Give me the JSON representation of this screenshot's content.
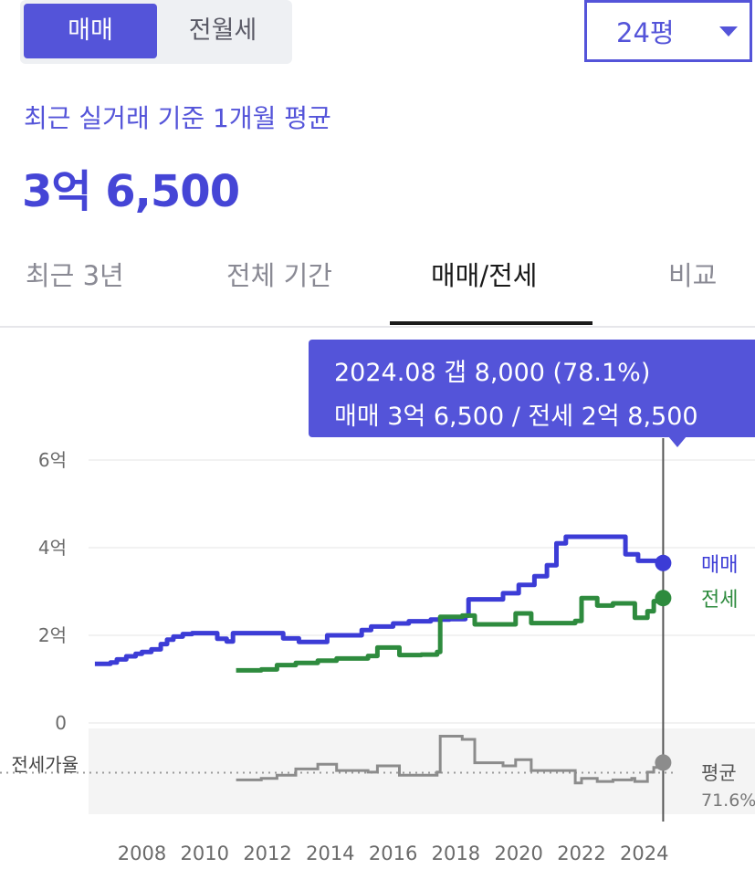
{
  "deal_type": {
    "options": [
      "매매",
      "전월세"
    ],
    "selected": "매매"
  },
  "area": {
    "selected": "24평"
  },
  "summary": {
    "basis": "최근 실거래 기준 1개월 평균",
    "price": "3억 6,500"
  },
  "tabs": [
    {
      "label": "최근 3년",
      "active": false
    },
    {
      "label": "전체 기간",
      "active": false
    },
    {
      "label": "매매/전세",
      "active": true
    },
    {
      "label": "비교",
      "active": false
    }
  ],
  "tooltip": {
    "line1": "2024.08  갭 8,000 (78.1%)",
    "line2": "매매 3억 6,500 / 전세 2억 8,500"
  },
  "colors": {
    "accent": "#5454d9",
    "sale": "#3c3cd6",
    "jeonse": "#2e8b3e",
    "ratio": "#8c8c8c"
  },
  "chart_data": {
    "type": "line",
    "x_unit": "year",
    "y_unit": "억",
    "xlim": [
      2006.3,
      2024.85
    ],
    "ylim": [
      0,
      6
    ],
    "y_ticks": [
      {
        "value": 0,
        "label": "0"
      },
      {
        "value": 2,
        "label": "2억"
      },
      {
        "value": 4,
        "label": "4억"
      },
      {
        "value": 6,
        "label": "6억"
      }
    ],
    "x_ticks": [
      "2008",
      "2010",
      "2012",
      "2014",
      "2016",
      "2018",
      "2020",
      "2022",
      "2024"
    ],
    "grid": true,
    "cursor_x": 2024.6,
    "series": [
      {
        "name": "매매",
        "color": "#3c3cd6",
        "points": [
          [
            2006.5,
            1.35
          ],
          [
            2007.0,
            1.38
          ],
          [
            2007.2,
            1.45
          ],
          [
            2007.5,
            1.52
          ],
          [
            2007.8,
            1.58
          ],
          [
            2008.0,
            1.62
          ],
          [
            2008.3,
            1.68
          ],
          [
            2008.6,
            1.8
          ],
          [
            2008.8,
            1.9
          ],
          [
            2009.0,
            1.97
          ],
          [
            2009.3,
            2.03
          ],
          [
            2009.6,
            2.05
          ],
          [
            2010.2,
            2.05
          ],
          [
            2010.4,
            1.92
          ],
          [
            2010.7,
            1.86
          ],
          [
            2010.9,
            2.05
          ],
          [
            2011.5,
            2.05
          ],
          [
            2012.3,
            2.05
          ],
          [
            2012.5,
            1.93
          ],
          [
            2013.0,
            1.85
          ],
          [
            2013.7,
            1.85
          ],
          [
            2013.9,
            2.0
          ],
          [
            2014.5,
            2.0
          ],
          [
            2015.0,
            2.12
          ],
          [
            2015.3,
            2.2
          ],
          [
            2016.0,
            2.27
          ],
          [
            2016.5,
            2.32
          ],
          [
            2017.2,
            2.36
          ],
          [
            2017.8,
            2.37
          ],
          [
            2018.3,
            2.45
          ],
          [
            2018.4,
            2.82
          ],
          [
            2019.5,
            2.96
          ],
          [
            2020.0,
            3.15
          ],
          [
            2020.5,
            3.35
          ],
          [
            2020.9,
            3.6
          ],
          [
            2021.2,
            4.1
          ],
          [
            2021.5,
            4.25
          ],
          [
            2022.2,
            4.25
          ],
          [
            2022.8,
            4.25
          ],
          [
            2023.3,
            4.25
          ],
          [
            2023.4,
            3.85
          ],
          [
            2023.8,
            3.7
          ],
          [
            2024.2,
            3.7
          ],
          [
            2024.6,
            3.65
          ]
        ]
      },
      {
        "name": "전세",
        "color": "#2e8b3e",
        "points": [
          [
            2011.0,
            1.2
          ],
          [
            2011.8,
            1.22
          ],
          [
            2012.3,
            1.32
          ],
          [
            2012.9,
            1.37
          ],
          [
            2013.6,
            1.42
          ],
          [
            2014.2,
            1.47
          ],
          [
            2015.2,
            1.53
          ],
          [
            2015.5,
            1.72
          ],
          [
            2016.2,
            1.55
          ],
          [
            2016.9,
            1.56
          ],
          [
            2017.4,
            1.62
          ],
          [
            2017.5,
            2.42
          ],
          [
            2018.2,
            2.45
          ],
          [
            2018.6,
            2.25
          ],
          [
            2019.5,
            2.25
          ],
          [
            2019.9,
            2.5
          ],
          [
            2020.4,
            2.28
          ],
          [
            2021.8,
            2.33
          ],
          [
            2022.0,
            2.85
          ],
          [
            2022.5,
            2.68
          ],
          [
            2023.0,
            2.73
          ],
          [
            2023.6,
            2.73
          ],
          [
            2023.7,
            2.4
          ],
          [
            2024.1,
            2.55
          ],
          [
            2024.3,
            2.78
          ],
          [
            2024.6,
            2.85
          ]
        ]
      }
    ],
    "ratio_panel": {
      "label": "전세가율",
      "average_label": "평균",
      "average_value": "71.6%",
      "ylim": [
        45,
        100
      ],
      "average": 71.6,
      "points": [
        [
          2011.0,
          67
        ],
        [
          2011.8,
          68
        ],
        [
          2012.3,
          70
        ],
        [
          2012.9,
          74
        ],
        [
          2013.6,
          77
        ],
        [
          2014.2,
          73
        ],
        [
          2015.2,
          72
        ],
        [
          2015.5,
          76
        ],
        [
          2016.2,
          70
        ],
        [
          2016.9,
          70
        ],
        [
          2017.4,
          72
        ],
        [
          2017.5,
          95
        ],
        [
          2018.2,
          93
        ],
        [
          2018.6,
          78
        ],
        [
          2019.5,
          76
        ],
        [
          2019.9,
          80
        ],
        [
          2020.4,
          73
        ],
        [
          2021.8,
          65
        ],
        [
          2022.0,
          68
        ],
        [
          2022.5,
          66
        ],
        [
          2023.0,
          67
        ],
        [
          2023.6,
          68
        ],
        [
          2023.7,
          66
        ],
        [
          2024.1,
          72
        ],
        [
          2024.3,
          75
        ],
        [
          2024.6,
          78.1
        ]
      ]
    }
  }
}
